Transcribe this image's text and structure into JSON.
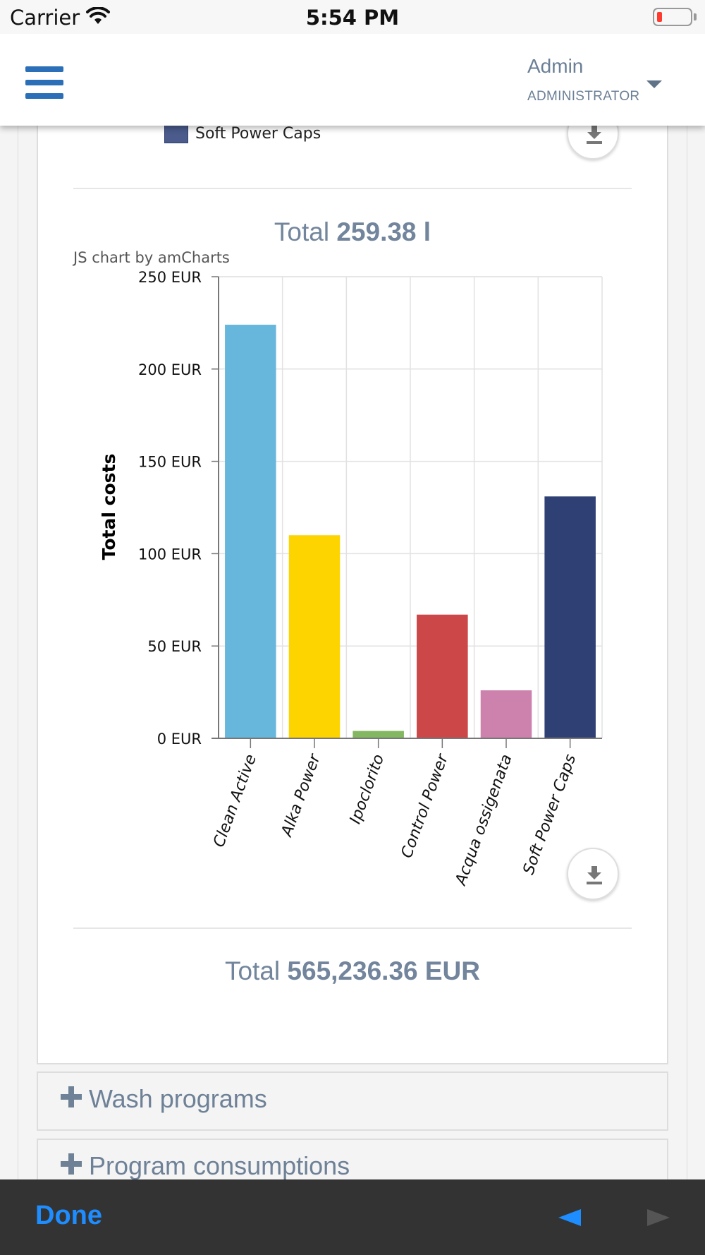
{
  "status_bar": {
    "carrier": "Carrier",
    "time": "5:54 PM",
    "wifi_icon": "wifi-icon",
    "battery_icon": "battery-low-icon",
    "battery_color": "#ff3b30"
  },
  "header": {
    "menu_icon": "hamburger-menu-icon",
    "user_name": "Admin",
    "user_role": "ADMINISTRATOR",
    "dropdown_icon": "caret-down-icon",
    "accent_color": "#2a6fb7"
  },
  "previous_chart": {
    "legend_label": "Soft Power Caps",
    "legend_color": "#4a5b8c",
    "download_icon": "download-icon"
  },
  "liters_total": {
    "prefix": "Total",
    "value": "259.38 l"
  },
  "chart_credit": "JS chart by amCharts",
  "chart_data": {
    "type": "bar",
    "ylabel": "Total costs",
    "categories": [
      "Clean Active",
      "Alka Power",
      "Ipoclorito",
      "Control Power",
      "Acqua ossigenata",
      "Soft Power Caps"
    ],
    "values": [
      224,
      110,
      4,
      67,
      26,
      131
    ],
    "colors": [
      "#67b7dc",
      "#fdd400",
      "#84b761",
      "#cc4748",
      "#cd82ad",
      "#2f4074"
    ],
    "ylim": [
      0,
      250
    ],
    "yticks": [
      "0 EUR",
      "50 EUR",
      "100 EUR",
      "150 EUR",
      "200 EUR",
      "250 EUR"
    ],
    "grid": true
  },
  "chart_download_icon": "download-icon",
  "cost_total": {
    "prefix": "Total",
    "value": "565,236.36 EUR"
  },
  "accordions": [
    {
      "label": "Wash programs",
      "icon": "plus-icon"
    },
    {
      "label": "Program consumptions",
      "icon": "plus-icon"
    }
  ],
  "toolbar": {
    "done_label": "Done",
    "back_icon": "arrow-left-icon",
    "forward_icon": "arrow-right-icon",
    "active_color": "#1e8dff"
  }
}
